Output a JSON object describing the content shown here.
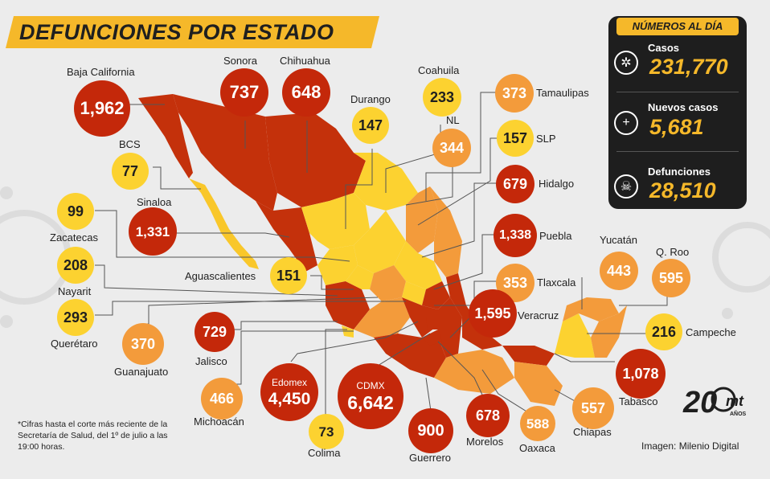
{
  "title": "DEFUNCIONES POR ESTADO",
  "panel": {
    "heading": "NÚMEROS AL DÍA",
    "items": [
      {
        "label": "Casos",
        "value": "231,770",
        "icon": "virus-icon"
      },
      {
        "label": "Nuevos casos",
        "value": "5,681",
        "icon": "plus-icon"
      },
      {
        "label": "Defunciones",
        "value": "28,510",
        "icon": "skull-icon"
      }
    ]
  },
  "states": [
    {
      "name": "Baja California",
      "value": "1,962"
    },
    {
      "name": "Sonora",
      "value": "737"
    },
    {
      "name": "Chihuahua",
      "value": "648"
    },
    {
      "name": "Durango",
      "value": "147"
    },
    {
      "name": "Coahuila",
      "value": "233"
    },
    {
      "name": "Tamaulipas",
      "value": "373"
    },
    {
      "name": "NL",
      "value": "344"
    },
    {
      "name": "SLP",
      "value": "157"
    },
    {
      "name": "Hidalgo",
      "value": "679"
    },
    {
      "name": "Puebla",
      "value": "1,338"
    },
    {
      "name": "Tlaxcala",
      "value": "353"
    },
    {
      "name": "Veracruz",
      "value": "1,595"
    },
    {
      "name": "BCS",
      "value": "77"
    },
    {
      "name": "Sinaloa",
      "value": "1,331"
    },
    {
      "name": "Zacatecas",
      "value": "99"
    },
    {
      "name": "Nayarit",
      "value": "208"
    },
    {
      "name": "Aguascalientes",
      "value": "151"
    },
    {
      "name": "Querétaro",
      "value": "293"
    },
    {
      "name": "Guanajuato",
      "value": "370"
    },
    {
      "name": "Jalisco",
      "value": "729"
    },
    {
      "name": "Michoacán",
      "value": "466"
    },
    {
      "name": "Edomex",
      "value": "4,450"
    },
    {
      "name": "CDMX",
      "value": "6,642"
    },
    {
      "name": "Colima",
      "value": "73"
    },
    {
      "name": "Guerrero",
      "value": "900"
    },
    {
      "name": "Morelos",
      "value": "678"
    },
    {
      "name": "Oaxaca",
      "value": "588"
    },
    {
      "name": "Chiapas",
      "value": "557"
    },
    {
      "name": "Tabasco",
      "value": "1,078"
    },
    {
      "name": "Campeche",
      "value": "216"
    },
    {
      "name": "Yucatán",
      "value": "443"
    },
    {
      "name": "Q. Roo",
      "value": "595"
    }
  ],
  "note": "*Cifras hasta el corte más reciente de la Secretaría de Salud, del 1º de julio a las 19:00 horas.",
  "credit": "Imagen: Milenio Digital",
  "logo_text": "20 mt AÑOS",
  "colors": {
    "yellow": "#fcd230",
    "orange": "#f39b3b",
    "red": "#c4280a",
    "accent": "#f5b82a",
    "panel": "#1e1e1e"
  }
}
